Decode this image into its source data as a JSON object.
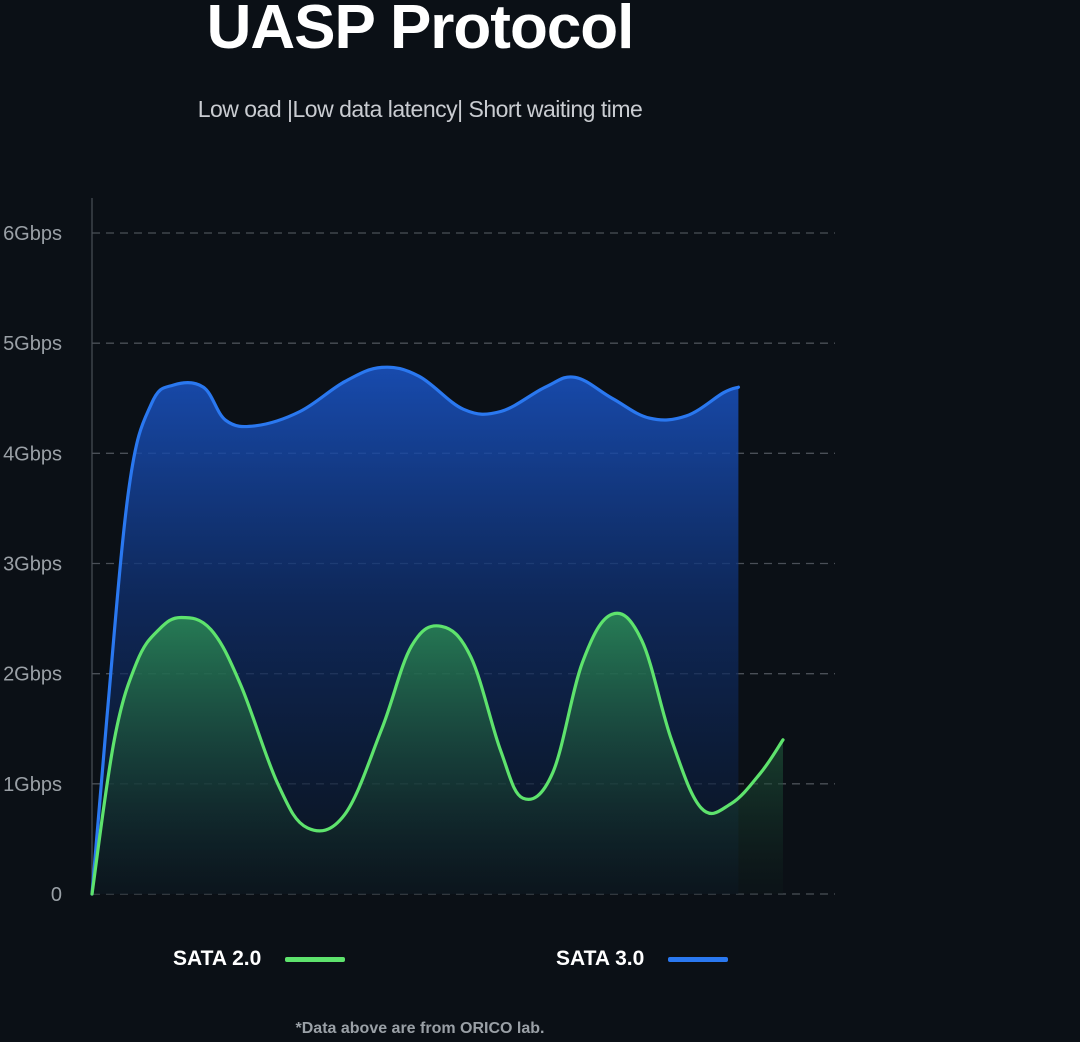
{
  "header": {
    "title": "UASP Protocol",
    "subtitle": "Low oad |Low data latency| Short waiting time"
  },
  "footnote": "*Data above are from ORICO lab.",
  "colors": {
    "background": "#0b1016",
    "sata2": "#5ee36d",
    "sata3": "#2a78f0",
    "grid": "#4a4f57",
    "tick_text": "#9aa0a6"
  },
  "chart_data": {
    "type": "area",
    "title": "",
    "xlabel": "",
    "ylabel": "",
    "y_ticks": [
      {
        "value": 0,
        "label": "0"
      },
      {
        "value": 1,
        "label": "1Gbps"
      },
      {
        "value": 2,
        "label": "2Gbps"
      },
      {
        "value": 3,
        "label": "3Gbps"
      },
      {
        "value": 4,
        "label": "4Gbps"
      },
      {
        "value": 5,
        "label": "5Gbps"
      },
      {
        "value": 6,
        "label": "6Gbps"
      }
    ],
    "ylim": [
      0,
      6
    ],
    "xlim": [
      0,
      1
    ],
    "grid": "horizontal dashed",
    "legend_position": "bottom",
    "series": [
      {
        "name": "SATA 2.0",
        "color": "#5ee36d",
        "points": [
          {
            "x": 0.0,
            "y": 0.0
          },
          {
            "x": 0.03,
            "y": 1.4
          },
          {
            "x": 0.06,
            "y": 2.1
          },
          {
            "x": 0.09,
            "y": 2.4
          },
          {
            "x": 0.12,
            "y": 2.51
          },
          {
            "x": 0.16,
            "y": 2.4
          },
          {
            "x": 0.2,
            "y": 1.9
          },
          {
            "x": 0.25,
            "y": 1.0
          },
          {
            "x": 0.29,
            "y": 0.6
          },
          {
            "x": 0.34,
            "y": 0.72
          },
          {
            "x": 0.39,
            "y": 1.5
          },
          {
            "x": 0.43,
            "y": 2.25
          },
          {
            "x": 0.47,
            "y": 2.43
          },
          {
            "x": 0.51,
            "y": 2.15
          },
          {
            "x": 0.55,
            "y": 1.3
          },
          {
            "x": 0.58,
            "y": 0.87
          },
          {
            "x": 0.62,
            "y": 1.1
          },
          {
            "x": 0.66,
            "y": 2.1
          },
          {
            "x": 0.7,
            "y": 2.54
          },
          {
            "x": 0.74,
            "y": 2.3
          },
          {
            "x": 0.78,
            "y": 1.4
          },
          {
            "x": 0.82,
            "y": 0.78
          },
          {
            "x": 0.86,
            "y": 0.82
          },
          {
            "x": 0.9,
            "y": 1.1
          },
          {
            "x": 0.93,
            "y": 1.4
          }
        ]
      },
      {
        "name": "SATA 3.0",
        "color": "#2a78f0",
        "points": [
          {
            "x": 0.0,
            "y": 0.0
          },
          {
            "x": 0.02,
            "y": 1.6
          },
          {
            "x": 0.05,
            "y": 3.7
          },
          {
            "x": 0.08,
            "y": 4.45
          },
          {
            "x": 0.11,
            "y": 4.62
          },
          {
            "x": 0.15,
            "y": 4.6
          },
          {
            "x": 0.18,
            "y": 4.3
          },
          {
            "x": 0.22,
            "y": 4.25
          },
          {
            "x": 0.28,
            "y": 4.38
          },
          {
            "x": 0.34,
            "y": 4.65
          },
          {
            "x": 0.39,
            "y": 4.78
          },
          {
            "x": 0.44,
            "y": 4.7
          },
          {
            "x": 0.5,
            "y": 4.4
          },
          {
            "x": 0.55,
            "y": 4.38
          },
          {
            "x": 0.61,
            "y": 4.6
          },
          {
            "x": 0.65,
            "y": 4.69
          },
          {
            "x": 0.7,
            "y": 4.5
          },
          {
            "x": 0.75,
            "y": 4.32
          },
          {
            "x": 0.8,
            "y": 4.34
          },
          {
            "x": 0.85,
            "y": 4.55
          },
          {
            "x": 0.87,
            "y": 4.6
          }
        ]
      }
    ]
  },
  "legend": [
    {
      "label": "SATA 2.0",
      "color": "#5ee36d"
    },
    {
      "label": "SATA 3.0",
      "color": "#2a78f0"
    }
  ]
}
